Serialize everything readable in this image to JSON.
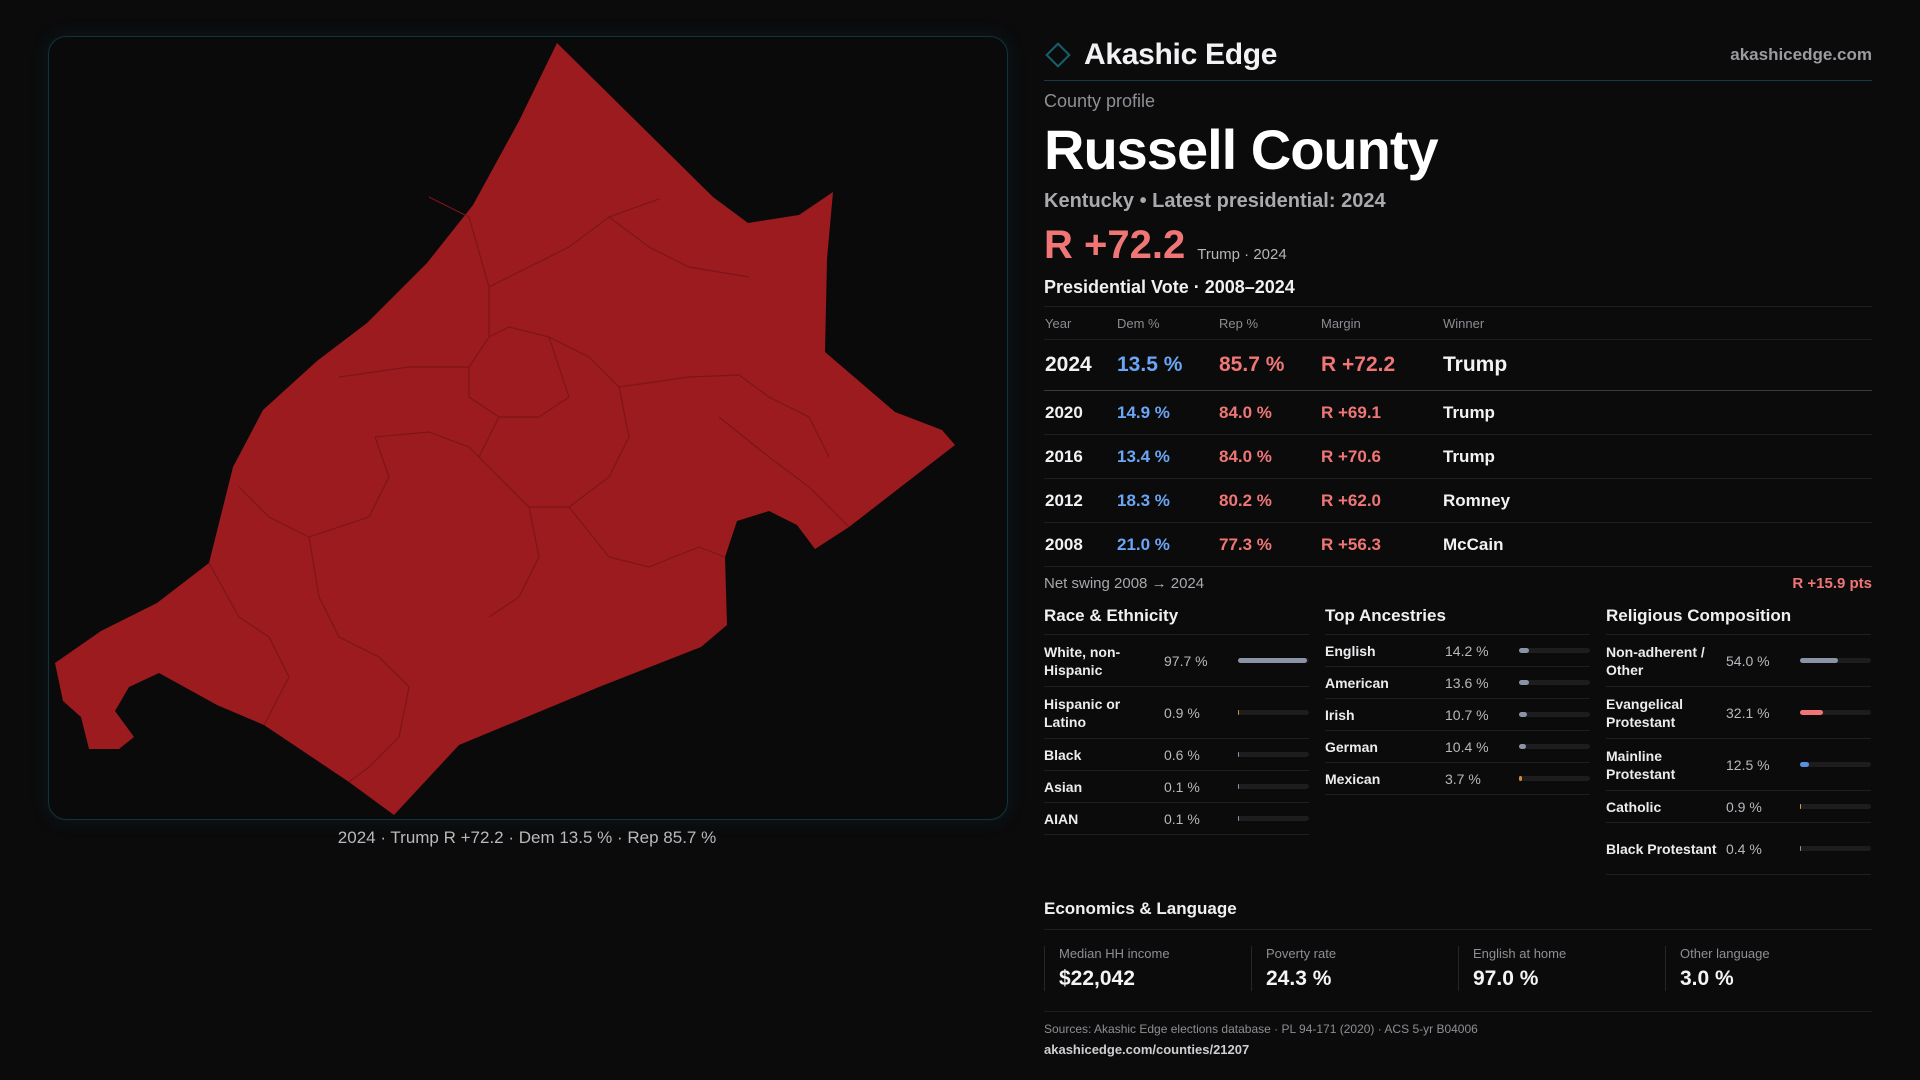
{
  "brand": {
    "name": "Akashic Edge",
    "site": "akashicedge.com",
    "accent": "#17606b"
  },
  "profile": {
    "kicker": "County profile",
    "title": "Russell County",
    "subline": "Kentucky • Latest presidential: 2024",
    "headline_margin": "R +72.2",
    "headline_note": "Trump · 2024"
  },
  "map": {
    "fill_color": "#9c1b1f",
    "caption": "2024 · Trump R +72.2 · Dem 13.5 % · Rep 85.7 %"
  },
  "votes": {
    "title": "Presidential Vote · 2008–2024",
    "headers": {
      "year": "Year",
      "dem": "Dem %",
      "rep": "Rep %",
      "margin": "Margin",
      "winner": "Winner"
    },
    "rows": [
      {
        "year": "2024",
        "dem": "13.5 %",
        "rep": "85.7 %",
        "margin": "R +72.2",
        "winner": "Trump"
      },
      {
        "year": "2020",
        "dem": "14.9 %",
        "rep": "84.0 %",
        "margin": "R +69.1",
        "winner": "Trump"
      },
      {
        "year": "2016",
        "dem": "13.4 %",
        "rep": "84.0 %",
        "margin": "R +70.6",
        "winner": "Trump"
      },
      {
        "year": "2012",
        "dem": "18.3 %",
        "rep": "80.2 %",
        "margin": "R +62.0",
        "winner": "Romney"
      },
      {
        "year": "2008",
        "dem": "21.0 %",
        "rep": "77.3 %",
        "margin": "R +56.3",
        "winner": "McCain"
      }
    ],
    "dem_color": "#6aa6f5",
    "rep_color": "#f07676"
  },
  "swing": {
    "label": "Net swing 2008 → 2024",
    "value": "R +15.9 pts"
  },
  "race": {
    "title": "Race & Ethnicity",
    "items": [
      {
        "label": "White, non-Hispanic",
        "value": "97.7 %",
        "pct": 97.7,
        "color": "#8b93a6"
      },
      {
        "label": "Hispanic or Latino",
        "value": "0.9 %",
        "pct": 0.9,
        "color": "#d28a3a"
      },
      {
        "label": "Black",
        "value": "0.6 %",
        "pct": 0.6,
        "color": "#8b93a6"
      },
      {
        "label": "Asian",
        "value": "0.1 %",
        "pct": 0.1,
        "color": "#8b93a6"
      },
      {
        "label": "AIAN",
        "value": "0.1 %",
        "pct": 0.1,
        "color": "#8b93a6"
      }
    ]
  },
  "ancestry": {
    "title": "Top Ancestries",
    "items": [
      {
        "label": "English",
        "value": "14.2 %",
        "pct": 14.2,
        "color": "#8b93a6"
      },
      {
        "label": "American",
        "value": "13.6 %",
        "pct": 13.6,
        "color": "#8b93a6"
      },
      {
        "label": "Irish",
        "value": "10.7 %",
        "pct": 10.7,
        "color": "#8b93a6"
      },
      {
        "label": "German",
        "value": "10.4 %",
        "pct": 10.4,
        "color": "#8b93a6"
      },
      {
        "label": "Mexican",
        "value": "3.7 %",
        "pct": 3.7,
        "color": "#d28a3a"
      }
    ]
  },
  "religion": {
    "title": "Religious Composition",
    "items": [
      {
        "label": "Non-adherent / Other",
        "value": "54.0 %",
        "pct": 54.0,
        "color": "#8b93a6"
      },
      {
        "label": "Evangelical Protestant",
        "value": "32.1 %",
        "pct": 32.1,
        "color": "#f07676"
      },
      {
        "label": "Mainline Protestant",
        "value": "12.5 %",
        "pct": 12.5,
        "color": "#5b8fe0"
      },
      {
        "label": "Catholic",
        "value": "0.9 %",
        "pct": 0.9,
        "color": "#d6a23a"
      },
      {
        "label": "Black Protestant",
        "value": "0.4 %",
        "pct": 0.4,
        "color": "#8b93a6"
      }
    ]
  },
  "economics": {
    "title": "Economics & Language",
    "items": [
      {
        "label": "Median HH income",
        "value": "$22,042"
      },
      {
        "label": "Poverty rate",
        "value": "24.3 %"
      },
      {
        "label": "English at home",
        "value": "97.0 %"
      },
      {
        "label": "Other language",
        "value": "3.0 %"
      }
    ]
  },
  "footer": {
    "sources": "Sources: Akashic Edge elections database · PL 94-171 (2020) · ACS 5-yr B04006",
    "url": "akashicedge.com/counties/21207"
  }
}
